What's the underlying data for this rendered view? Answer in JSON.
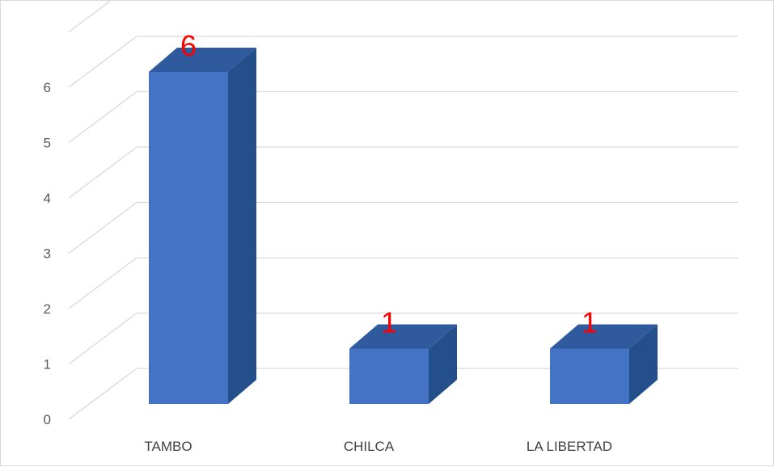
{
  "chart_data": {
    "type": "bar",
    "categories": [
      "TAMBO",
      "CHILCA",
      "LA LIBERTAD"
    ],
    "values": [
      6,
      1,
      1
    ],
    "data_labels": [
      "6",
      "1",
      "1"
    ],
    "y_ticks": [
      "0",
      "1",
      "2",
      "3",
      "4",
      "5",
      "6"
    ],
    "ylim": [
      0,
      6
    ],
    "grid": true,
    "legend": "none",
    "title": "",
    "xlabel": "",
    "ylabel": "",
    "colors": {
      "bar_front": "#4472c4",
      "bar_side": "#23508a",
      "bar_top": "#2f5a9e",
      "data_label": "#ff0000",
      "gridline": "#d9d9d9"
    }
  }
}
